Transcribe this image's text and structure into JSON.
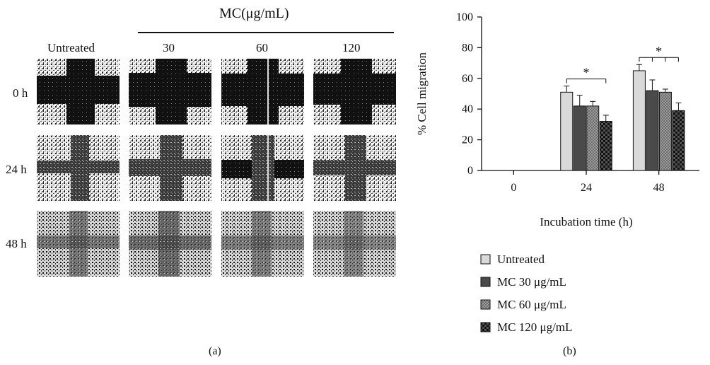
{
  "panel_a": {
    "group_header": "MC(μg/mL)",
    "columns": [
      "Untreated",
      "30",
      "60",
      "120"
    ],
    "rows": [
      "0 h",
      "24 h",
      "48 h"
    ],
    "caption": "(a)"
  },
  "panel_b": {
    "caption": "(b)"
  },
  "chart_data": {
    "type": "bar",
    "categories": [
      "0",
      "24",
      "48"
    ],
    "xlabel": "Incubation time (h)",
    "ylabel": "% Cell migration",
    "ylim": [
      0,
      100
    ],
    "yticks": [
      0,
      20,
      40,
      60,
      80,
      100
    ],
    "series": [
      {
        "name": "Untreated",
        "values": [
          null,
          51,
          65
        ],
        "errors": [
          null,
          4,
          4
        ],
        "color": "#d9d9d9"
      },
      {
        "name": "MC 30 μg/mL",
        "values": [
          null,
          42,
          52
        ],
        "errors": [
          null,
          7,
          7
        ],
        "color": "#4a4a4a"
      },
      {
        "name": "MC 60 μg/mL",
        "values": [
          null,
          42,
          51
        ],
        "errors": [
          null,
          3,
          2
        ],
        "color": "#8a8a8a"
      },
      {
        "name": "MC 120 μg/mL",
        "values": [
          null,
          32,
          39
        ],
        "errors": [
          null,
          4,
          5
        ],
        "color": "#1a1a1a"
      }
    ],
    "annotations": [
      {
        "text": "*",
        "category": "24"
      },
      {
        "text": "*",
        "category": "48"
      }
    ],
    "legend_position": "bottom"
  }
}
